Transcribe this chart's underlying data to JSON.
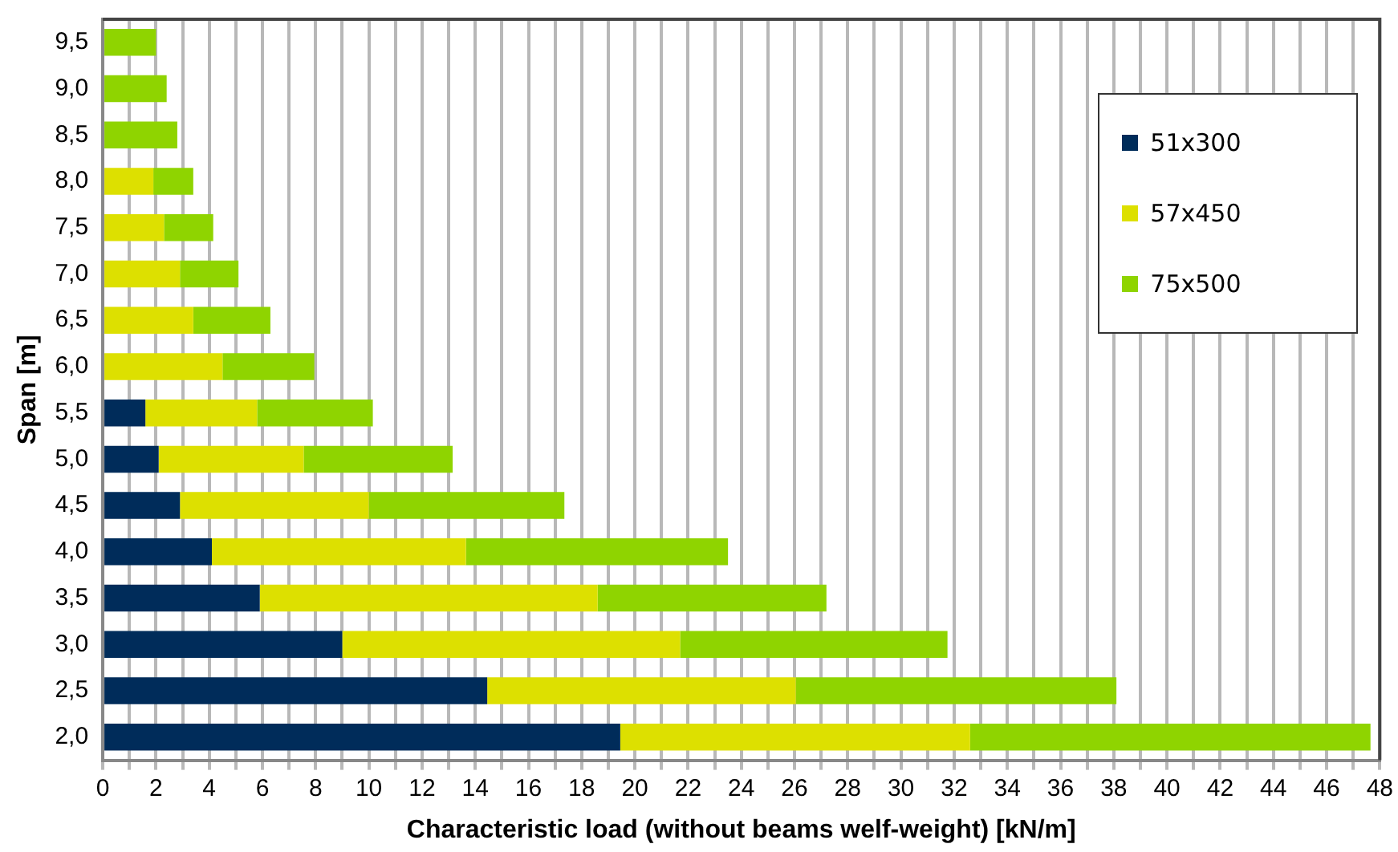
{
  "chart_data": {
    "type": "bar",
    "orientation": "horizontal",
    "stacked": true,
    "xlabel": "Characteristic load (without beams welf-weight) [kN/m]",
    "ylabel": "Span [m]",
    "categories": [
      "9,5",
      "9,0",
      "8,5",
      "8,0",
      "7,5",
      "7,0",
      "6,5",
      "6,0",
      "5,5",
      "5,0",
      "4,5",
      "4,0",
      "3,5",
      "3,0",
      "2,5",
      "2,0"
    ],
    "series": [
      {
        "name": "51x300",
        "color": "#002c5a",
        "values": [
          null,
          null,
          null,
          null,
          null,
          null,
          null,
          null,
          1.6,
          2.1,
          2.9,
          4.1,
          5.9,
          9.0,
          14.45,
          19.45
        ]
      },
      {
        "name": "57x450",
        "color": "#dde000",
        "values": [
          null,
          null,
          null,
          1.9,
          2.3,
          2.9,
          3.4,
          4.5,
          4.2,
          5.45,
          7.1,
          9.55,
          12.7,
          12.7,
          11.6,
          13.15
        ]
      },
      {
        "name": "75x500",
        "color": "#8fd400",
        "values": [
          2.0,
          2.4,
          2.8,
          1.5,
          1.85,
          2.2,
          2.9,
          3.45,
          4.35,
          5.6,
          7.35,
          9.85,
          8.6,
          10.05,
          12.05,
          15.05
        ]
      }
    ],
    "xlim": [
      0,
      48
    ],
    "xticks": [
      0,
      {
        "value": 1,
        "label": null
      },
      2,
      {
        "value": 3,
        "label": null
      },
      4,
      {
        "value": 5,
        "label": null
      },
      6,
      {
        "value": 7,
        "label": null
      },
      8,
      {
        "value": 9,
        "label": null
      },
      10,
      {
        "value": 11,
        "label": null
      },
      12,
      {
        "value": 13,
        "label": null
      },
      14,
      {
        "value": 15,
        "label": null
      },
      16,
      {
        "value": 17,
        "label": null
      },
      18,
      {
        "value": 19,
        "label": null
      },
      20,
      {
        "value": 21,
        "label": null
      },
      22,
      {
        "value": 23,
        "label": null
      },
      24,
      {
        "value": 25,
        "label": null
      },
      26,
      {
        "value": 27,
        "label": null
      },
      28,
      {
        "value": 29,
        "label": null
      },
      30,
      {
        "value": 31,
        "label": null
      },
      32,
      {
        "value": 33,
        "label": null
      },
      34,
      {
        "value": 35,
        "label": null
      },
      36,
      {
        "value": 37,
        "label": null
      },
      38,
      {
        "value": 39,
        "label": null
      },
      40,
      {
        "value": 41,
        "label": null
      },
      42,
      {
        "value": 43,
        "label": null
      },
      44,
      {
        "value": 45,
        "label": null
      },
      46,
      {
        "value": 47,
        "label": null
      },
      48
    ],
    "grid": "x",
    "legend": "top right"
  }
}
